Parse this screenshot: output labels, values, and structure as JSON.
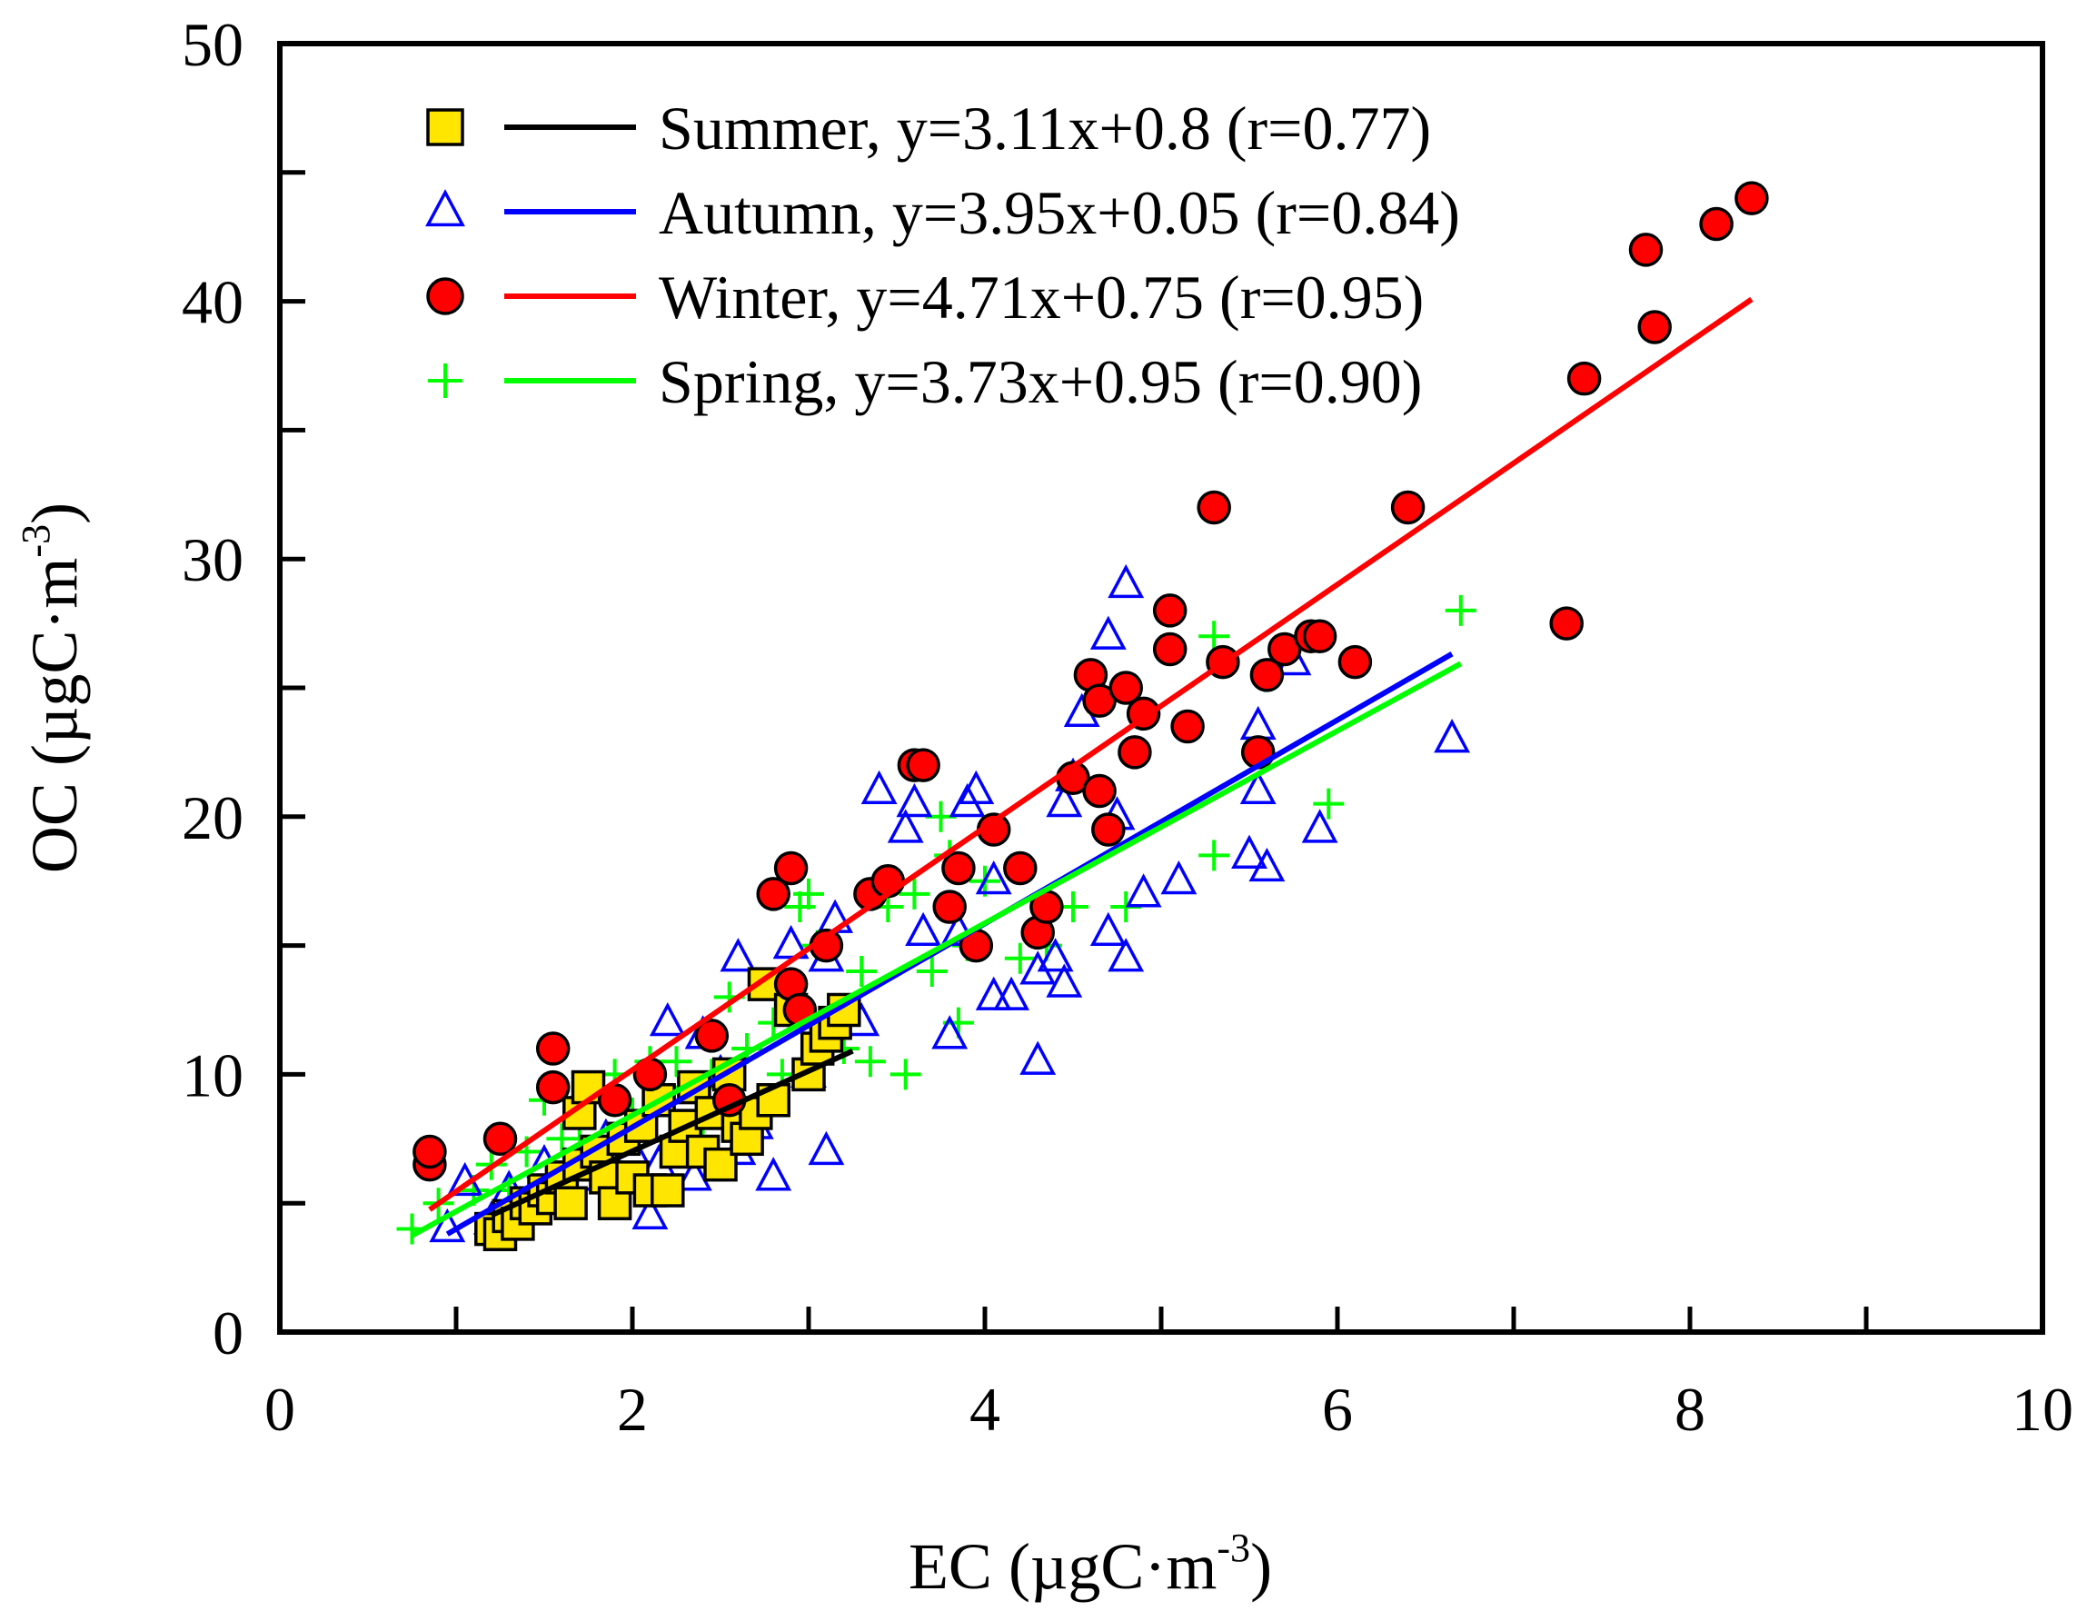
{
  "chart_data": {
    "type": "scatter",
    "title": "",
    "xlabel": "EC (µgC·m",
    "xlabel_sup": "-3",
    "xlabel_close": ")",
    "ylabel": "OC (µgC·m",
    "ylabel_sup": "-3",
    "ylabel_close": ")",
    "xlim": [
      0,
      10
    ],
    "ylim": [
      0,
      50
    ],
    "x_ticks": [
      0,
      2,
      4,
      6,
      8,
      10
    ],
    "y_ticks": [
      0,
      10,
      20,
      30,
      40,
      50
    ],
    "x_tick_labels": [
      "0",
      "2",
      "4",
      "6",
      "8",
      "10"
    ],
    "y_tick_labels": [
      "0",
      "10",
      "20",
      "30",
      "40",
      "50"
    ],
    "legend_position": "top-left",
    "series": [
      {
        "name": "Summer",
        "legend_label": "Summer, y=3.11x+0.8 (r=0.77)",
        "marker": "square",
        "marker_fill": "#FFE600",
        "marker_stroke": "#000000",
        "line_color": "#000000",
        "fit": {
          "slope": 3.11,
          "intercept": 0.8,
          "r": 0.77,
          "x_range": [
            1.2,
            3.25
          ]
        },
        "points": [
          [
            1.2,
            4.0
          ],
          [
            1.25,
            3.8
          ],
          [
            1.3,
            4.5
          ],
          [
            1.35,
            4.2
          ],
          [
            1.4,
            5.0
          ],
          [
            1.45,
            4.8
          ],
          [
            1.5,
            5.5
          ],
          [
            1.55,
            5.2
          ],
          [
            1.6,
            6.0
          ],
          [
            1.65,
            5.0
          ],
          [
            1.7,
            6.5
          ],
          [
            1.7,
            8.5
          ],
          [
            1.75,
            9.5
          ],
          [
            1.8,
            7.0
          ],
          [
            1.85,
            6.0
          ],
          [
            1.9,
            5.0
          ],
          [
            1.95,
            7.5
          ],
          [
            2.0,
            6.0
          ],
          [
            2.05,
            8.0
          ],
          [
            2.1,
            5.5
          ],
          [
            2.15,
            9.0
          ],
          [
            2.2,
            5.5
          ],
          [
            2.25,
            7.0
          ],
          [
            2.3,
            8.0
          ],
          [
            2.35,
            9.5
          ],
          [
            2.4,
            7.0
          ],
          [
            2.45,
            8.5
          ],
          [
            2.5,
            6.5
          ],
          [
            2.55,
            10.0
          ],
          [
            2.6,
            8.0
          ],
          [
            2.65,
            7.5
          ],
          [
            2.7,
            8.5
          ],
          [
            2.75,
            13.5
          ],
          [
            2.8,
            9.0
          ],
          [
            2.9,
            12.5
          ],
          [
            3.0,
            10.0
          ],
          [
            3.05,
            11.0
          ],
          [
            3.1,
            11.5
          ],
          [
            3.15,
            12.0
          ],
          [
            3.2,
            12.5
          ]
        ]
      },
      {
        "name": "Autumn",
        "legend_label": "Autumn, y=3.95x+0.05 (r=0.84)",
        "marker": "triangle",
        "marker_fill": "none",
        "marker_stroke": "#0000FF",
        "line_color": "#0000FF",
        "fit": {
          "slope": 3.95,
          "intercept": 0.05,
          "r": 0.84,
          "x_range": [
            0.95,
            6.65
          ]
        },
        "points": [
          [
            0.95,
            4.0
          ],
          [
            1.05,
            5.8
          ],
          [
            1.2,
            4.3
          ],
          [
            1.3,
            5.5
          ],
          [
            1.5,
            6.5
          ],
          [
            1.6,
            5.5
          ],
          [
            1.75,
            6.0
          ],
          [
            1.85,
            7.5
          ],
          [
            2.0,
            7.0
          ],
          [
            2.1,
            4.5
          ],
          [
            2.15,
            6.5
          ],
          [
            2.2,
            12.0
          ],
          [
            2.35,
            6.0
          ],
          [
            2.4,
            11.5
          ],
          [
            2.5,
            10.0
          ],
          [
            2.6,
            14.5
          ],
          [
            2.6,
            7.0
          ],
          [
            2.7,
            8.0
          ],
          [
            2.8,
            6.0
          ],
          [
            2.9,
            15.0
          ],
          [
            3.0,
            10.0
          ],
          [
            3.1,
            7.0
          ],
          [
            3.1,
            14.5
          ],
          [
            3.15,
            16.0
          ],
          [
            3.3,
            12.0
          ],
          [
            3.4,
            21.0
          ],
          [
            3.55,
            19.5
          ],
          [
            3.6,
            20.5
          ],
          [
            3.65,
            15.5
          ],
          [
            3.8,
            11.5
          ],
          [
            3.85,
            15.5
          ],
          [
            3.9,
            20.5
          ],
          [
            3.95,
            21.0
          ],
          [
            4.05,
            13.0
          ],
          [
            4.05,
            17.5
          ],
          [
            4.15,
            13.0
          ],
          [
            4.3,
            10.5
          ],
          [
            4.3,
            14.0
          ],
          [
            4.4,
            14.5
          ],
          [
            4.45,
            13.5
          ],
          [
            4.45,
            20.5
          ],
          [
            4.5,
            21.5
          ],
          [
            4.55,
            24.0
          ],
          [
            4.7,
            15.5
          ],
          [
            4.7,
            27.0
          ],
          [
            4.75,
            20.0
          ],
          [
            4.8,
            14.5
          ],
          [
            4.8,
            29.0
          ],
          [
            4.9,
            17.0
          ],
          [
            5.1,
            17.5
          ],
          [
            5.5,
            18.5
          ],
          [
            5.55,
            23.5
          ],
          [
            5.55,
            21.0
          ],
          [
            5.6,
            18.0
          ],
          [
            5.75,
            26.0
          ],
          [
            5.9,
            19.5
          ],
          [
            6.65,
            23.0
          ]
        ]
      },
      {
        "name": "Winter",
        "legend_label": "Winter, y=4.71x+0.75 (r=0.95)",
        "marker": "circle",
        "marker_fill": "#FF0000",
        "marker_stroke": "#000000",
        "line_color": "#FF0000",
        "fit": {
          "slope": 4.71,
          "intercept": 0.75,
          "r": 0.95,
          "x_range": [
            0.85,
            8.35
          ]
        },
        "points": [
          [
            0.85,
            6.5
          ],
          [
            0.85,
            7.0
          ],
          [
            1.25,
            7.5
          ],
          [
            1.55,
            11.0
          ],
          [
            1.55,
            9.5
          ],
          [
            1.9,
            9.0
          ],
          [
            2.1,
            10.0
          ],
          [
            2.45,
            11.5
          ],
          [
            2.55,
            9.0
          ],
          [
            2.8,
            17.0
          ],
          [
            2.9,
            18.0
          ],
          [
            2.9,
            13.5
          ],
          [
            2.95,
            12.5
          ],
          [
            3.1,
            15.0
          ],
          [
            3.35,
            17.0
          ],
          [
            3.45,
            17.5
          ],
          [
            3.6,
            22.0
          ],
          [
            3.65,
            22.0
          ],
          [
            3.8,
            16.5
          ],
          [
            3.85,
            18.0
          ],
          [
            3.95,
            15.0
          ],
          [
            4.05,
            19.5
          ],
          [
            4.2,
            18.0
          ],
          [
            4.3,
            15.5
          ],
          [
            4.35,
            16.5
          ],
          [
            4.5,
            21.5
          ],
          [
            4.6,
            25.5
          ],
          [
            4.65,
            21.0
          ],
          [
            4.65,
            24.5
          ],
          [
            4.7,
            19.5
          ],
          [
            4.8,
            25.0
          ],
          [
            4.85,
            22.5
          ],
          [
            4.9,
            24.0
          ],
          [
            5.05,
            26.5
          ],
          [
            5.05,
            28.0
          ],
          [
            5.15,
            23.5
          ],
          [
            5.3,
            32.0
          ],
          [
            5.35,
            26.0
          ],
          [
            5.55,
            22.5
          ],
          [
            5.6,
            25.5
          ],
          [
            5.7,
            26.5
          ],
          [
            5.85,
            27.0
          ],
          [
            5.9,
            27.0
          ],
          [
            6.1,
            26.0
          ],
          [
            6.4,
            32.0
          ],
          [
            7.3,
            27.5
          ],
          [
            7.4,
            37.0
          ],
          [
            7.75,
            42.0
          ],
          [
            7.8,
            39.0
          ],
          [
            8.15,
            43.0
          ],
          [
            8.35,
            44.0
          ]
        ]
      },
      {
        "name": "Spring",
        "legend_label": "Spring, y=3.73x+0.95 (r=0.90)",
        "marker": "plus",
        "marker_fill": "none",
        "marker_stroke": "#00FF00",
        "line_color": "#00FF00",
        "fit": {
          "slope": 3.73,
          "intercept": 0.95,
          "r": 0.9,
          "x_range": [
            0.75,
            6.7
          ]
        },
        "points": [
          [
            0.75,
            4.0
          ],
          [
            0.9,
            5.0
          ],
          [
            1.1,
            5.5
          ],
          [
            1.2,
            6.5
          ],
          [
            1.3,
            5.5
          ],
          [
            1.4,
            7.0
          ],
          [
            1.5,
            9.0
          ],
          [
            1.6,
            7.5
          ],
          [
            1.7,
            8.0
          ],
          [
            1.8,
            9.5
          ],
          [
            1.9,
            10.0
          ],
          [
            2.0,
            8.5
          ],
          [
            2.1,
            10.5
          ],
          [
            2.15,
            9.0
          ],
          [
            2.25,
            10.5
          ],
          [
            2.3,
            9.5
          ],
          [
            2.35,
            8.0
          ],
          [
            2.4,
            7.5
          ],
          [
            2.45,
            10.0
          ],
          [
            2.55,
            13.0
          ],
          [
            2.65,
            11.0
          ],
          [
            2.75,
            8.5
          ],
          [
            2.8,
            12.0
          ],
          [
            2.85,
            10.0
          ],
          [
            2.95,
            16.5
          ],
          [
            3.0,
            17.0
          ],
          [
            3.05,
            15.0
          ],
          [
            3.1,
            11.5
          ],
          [
            3.2,
            11.0
          ],
          [
            3.3,
            14.0
          ],
          [
            3.35,
            10.5
          ],
          [
            3.45,
            16.5
          ],
          [
            3.55,
            10.0
          ],
          [
            3.6,
            17.0
          ],
          [
            3.7,
            14.0
          ],
          [
            3.75,
            20.0
          ],
          [
            3.8,
            18.5
          ],
          [
            3.85,
            12.0
          ],
          [
            3.9,
            15.0
          ],
          [
            4.0,
            17.5
          ],
          [
            4.2,
            14.5
          ],
          [
            4.3,
            15.5
          ],
          [
            4.35,
            15.0
          ],
          [
            4.5,
            16.5
          ],
          [
            4.8,
            16.5
          ],
          [
            5.3,
            18.5
          ],
          [
            5.3,
            27.0
          ],
          [
            5.95,
            20.5
          ],
          [
            6.7,
            28.0
          ]
        ]
      }
    ]
  }
}
